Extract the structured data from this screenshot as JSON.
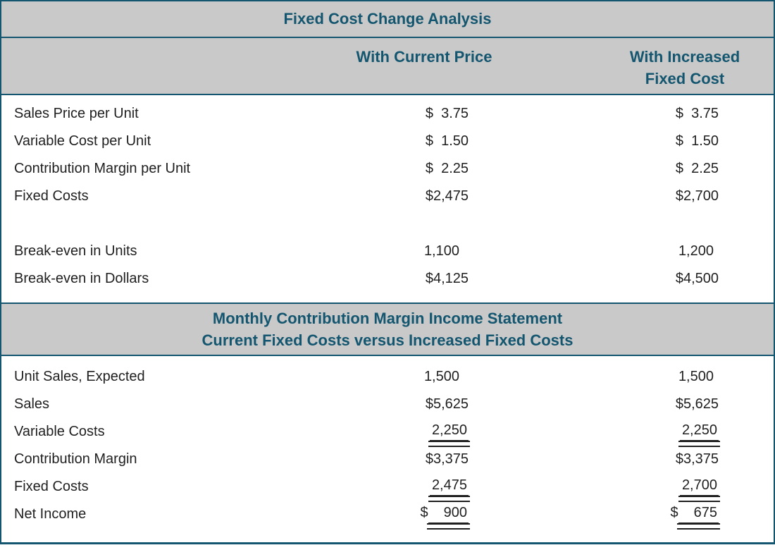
{
  "title": "Fixed Cost Change Analysis",
  "column_headers": {
    "current": "With Current Price",
    "increased": "With Increased Fixed Cost"
  },
  "analysis": {
    "rows": [
      {
        "label": "Sales Price per Unit",
        "current": "$  3.75",
        "increased": "$  3.75"
      },
      {
        "label": "Variable Cost per Unit",
        "current": "$  1.50",
        "increased": "$  1.50"
      },
      {
        "label": "Contribution Margin per Unit",
        "current": "$  2.25",
        "increased": "$  2.25"
      },
      {
        "label": "Fixed Costs",
        "current": "$2,475",
        "increased": "$2,700"
      },
      {
        "label": "Break-even in Units",
        "current": "1,100",
        "increased": "1,200"
      },
      {
        "label": "Break-even in Dollars",
        "current": "$4,125",
        "increased": "$4,500"
      }
    ]
  },
  "income_statement": {
    "title_line1": "Monthly Contribution Margin Income Statement",
    "title_line2": "Current Fixed Costs versus Increased Fixed Costs",
    "rows": [
      {
        "label": "Unit Sales, Expected",
        "current": "1,500",
        "increased": "1,500"
      },
      {
        "label": "Sales",
        "current": "$5,625",
        "increased": "$5,625"
      },
      {
        "label": "Variable Costs",
        "current": "2,250",
        "increased": "2,250"
      },
      {
        "label": "Contribution Margin",
        "current": "$3,375",
        "increased": "$3,375"
      },
      {
        "label": "Fixed Costs",
        "current": "2,475",
        "increased": "2,700"
      },
      {
        "label": "Net Income",
        "currency": "$",
        "current": "900",
        "increased": "675"
      }
    ]
  },
  "colors": {
    "accent_teal": "#14566f",
    "band_gray": "#c9c9c9",
    "body_text": "#1f1f1f"
  }
}
